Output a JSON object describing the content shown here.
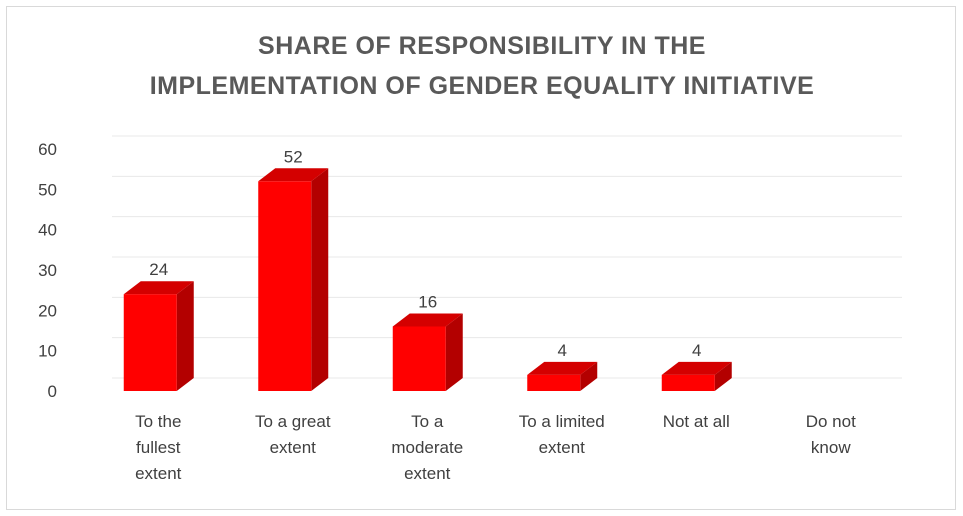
{
  "chart_data": {
    "type": "bar",
    "title_lines": [
      "SHARE OF RESPONSIBILITY IN THE",
      "IMPLEMENTATION OF GENDER EQUALITY INITIATIVE"
    ],
    "categories": [
      [
        "To the",
        "fullest",
        "extent"
      ],
      [
        "To a great",
        "extent"
      ],
      [
        "To a",
        "moderate",
        "extent"
      ],
      [
        "To a limited",
        "extent"
      ],
      [
        "Not at all"
      ],
      [
        "Do not",
        "know"
      ]
    ],
    "values": [
      24,
      52,
      16,
      4,
      4,
      null
    ],
    "data_labels": [
      "24",
      "52",
      "16",
      "4",
      "4",
      ""
    ],
    "ylim": [
      0,
      60
    ],
    "yticks": [
      0,
      10,
      20,
      30,
      40,
      50,
      60
    ],
    "grid": true,
    "bar_style": "3d",
    "colors": {
      "front": "#ff0000",
      "side": "#b30000",
      "top": "#d40000",
      "grid": "#e8e8e8",
      "text": "#404040",
      "title": "#595959"
    }
  }
}
